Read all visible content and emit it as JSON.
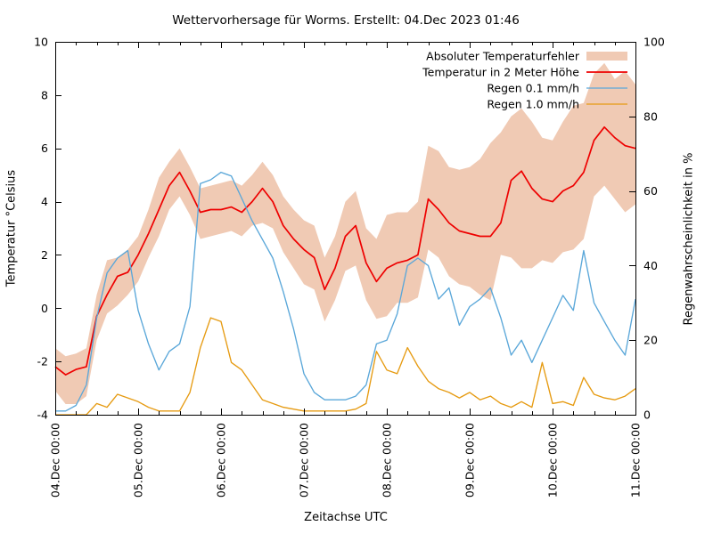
{
  "title": "Wettervorhersage für Worms. Erstellt: 04.Dec 2023 01:46",
  "axes": {
    "x": {
      "label": "Zeitachse UTC",
      "tick_labels": [
        "04.Dec 00:00",
        "05.Dec 00:00",
        "06.Dec 00:00",
        "07.Dec 00:00",
        "08.Dec 00:00",
        "09.Dec 00:00",
        "10.Dec 00:00",
        "11.Dec 00:00"
      ],
      "major_tick_hours": 24,
      "minor_tick_hours": 6
    },
    "y_left": {
      "label": "Temperatur °Celsius",
      "min": -4,
      "max": 10,
      "ticks": [
        -4,
        -2,
        0,
        2,
        4,
        6,
        8,
        10
      ]
    },
    "y_right": {
      "label": "Regenwahrscheinlichkeit in %",
      "min": 0,
      "max": 100,
      "ticks": [
        0,
        20,
        40,
        60,
        80,
        100
      ]
    }
  },
  "legend": [
    {
      "label": "Absoluter Temperaturfehler",
      "style": "band",
      "color": "#f0cab4"
    },
    {
      "label": "Temperatur in 2 Meter Höhe",
      "style": "line",
      "color": "#ee0000"
    },
    {
      "label": "Regen 0.1 mm/h",
      "style": "line",
      "color": "#5aa7d9"
    },
    {
      "label": "Regen 1.0 mm/h",
      "style": "line",
      "color": "#e69b12"
    }
  ],
  "chart_data": {
    "type": "line",
    "title": "Wettervorhersage für Worms. Erstellt: 04.Dec 2023 01:46",
    "xlabel": "Zeitachse UTC",
    "ylabel_left": "Temperatur °Celsius",
    "ylabel_right": "Regenwahrscheinlichkeit in %",
    "x_unit": "hours since 04.Dec 00:00 UTC",
    "x_range_hours": [
      0,
      168
    ],
    "ylim_left": [
      -4,
      10
    ],
    "ylim_right": [
      0,
      100
    ],
    "grid": false,
    "legend_position": "top-right-inside",
    "x_hours": [
      0,
      3,
      6,
      9,
      12,
      15,
      18,
      21,
      24,
      27,
      30,
      33,
      36,
      39,
      42,
      45,
      48,
      51,
      54,
      57,
      60,
      63,
      66,
      69,
      72,
      75,
      78,
      81,
      84,
      87,
      90,
      93,
      96,
      99,
      102,
      105,
      108,
      111,
      114,
      117,
      120,
      123,
      126,
      129,
      132,
      135,
      138,
      141,
      144,
      147,
      150,
      153,
      156,
      159,
      162,
      165,
      168
    ],
    "series": [
      {
        "name": "Absoluter Temperaturfehler",
        "axis": "left",
        "style": "band",
        "color": "#f0cab4",
        "upper": [
          -1.5,
          -1.8,
          -1.7,
          -1.5,
          0.5,
          1.8,
          1.9,
          2.2,
          2.7,
          3.7,
          4.9,
          5.5,
          6.0,
          5.3,
          4.5,
          4.6,
          4.7,
          4.8,
          4.6,
          5.0,
          5.5,
          5.0,
          4.2,
          3.7,
          3.3,
          3.1,
          1.9,
          2.7,
          4.0,
          4.4,
          3.0,
          2.6,
          3.5,
          3.6,
          3.6,
          4.0,
          6.1,
          5.9,
          5.3,
          5.2,
          5.3,
          5.6,
          6.2,
          6.6,
          7.2,
          7.5,
          7.0,
          6.4,
          6.3,
          7.0,
          7.6,
          7.7,
          8.8,
          9.2,
          8.6,
          8.9,
          8.4
        ],
        "lower": [
          -3.1,
          -3.6,
          -3.6,
          -3.3,
          -1.2,
          -0.2,
          0.1,
          0.5,
          1.0,
          1.9,
          2.7,
          3.7,
          4.2,
          3.5,
          2.6,
          2.7,
          2.8,
          2.9,
          2.7,
          3.1,
          3.2,
          3.0,
          2.1,
          1.5,
          0.9,
          0.7,
          -0.5,
          0.3,
          1.4,
          1.6,
          0.3,
          -0.4,
          -0.3,
          0.2,
          0.2,
          0.4,
          2.2,
          1.9,
          1.2,
          0.9,
          0.8,
          0.5,
          0.3,
          2.0,
          1.9,
          1.5,
          1.5,
          1.8,
          1.7,
          2.1,
          2.2,
          2.6,
          4.2,
          4.6,
          4.1,
          3.6,
          3.9
        ]
      },
      {
        "name": "Temperatur in 2 Meter Höhe",
        "axis": "left",
        "style": "line",
        "color": "#ee0000",
        "values": [
          -2.2,
          -2.5,
          -2.3,
          -2.2,
          -0.3,
          0.5,
          1.2,
          1.35,
          2.0,
          2.8,
          3.7,
          4.6,
          5.1,
          4.4,
          3.6,
          3.7,
          3.7,
          3.8,
          3.6,
          4.0,
          4.5,
          4.0,
          3.1,
          2.6,
          2.2,
          1.9,
          0.7,
          1.5,
          2.7,
          3.1,
          1.7,
          1.0,
          1.5,
          1.7,
          1.8,
          2.0,
          4.1,
          3.7,
          3.2,
          2.9,
          2.8,
          2.7,
          2.7,
          3.2,
          4.8,
          5.15,
          4.5,
          4.1,
          4.0,
          4.4,
          4.6,
          5.1,
          6.3,
          6.8,
          6.4,
          6.1,
          6.0
        ]
      },
      {
        "name": "Regen 0.1 mm/h",
        "axis": "right",
        "style": "line",
        "color": "#5aa7d9",
        "values": [
          1,
          1,
          2.5,
          8,
          26,
          38,
          42,
          44,
          28,
          19,
          12,
          17,
          19,
          29,
          62,
          63,
          65,
          64,
          58,
          52,
          47,
          42,
          33,
          23,
          11,
          6,
          4,
          4,
          4,
          5,
          8,
          19,
          20,
          27,
          40,
          42,
          40,
          31,
          34,
          24,
          29,
          31,
          34,
          26,
          16,
          20,
          14,
          20,
          26,
          32,
          28,
          44,
          30,
          25,
          20,
          16,
          31
        ]
      },
      {
        "name": "Regen 1.0 mm/h",
        "axis": "right",
        "style": "line",
        "color": "#e69b12",
        "values": [
          0,
          0,
          0,
          0,
          3,
          2,
          5.5,
          4.5,
          3.5,
          2,
          1,
          1,
          1,
          6,
          18,
          26,
          25,
          14,
          12,
          8,
          4,
          3,
          2,
          1.5,
          1,
          1,
          1,
          1,
          1,
          1.5,
          3,
          17,
          12,
          11,
          18,
          13,
          9,
          7,
          6,
          4.5,
          6,
          4,
          5,
          3,
          2,
          3.5,
          2,
          14,
          3,
          3.5,
          2.5,
          10,
          5.5,
          4.5,
          4,
          5,
          7
        ]
      }
    ]
  }
}
